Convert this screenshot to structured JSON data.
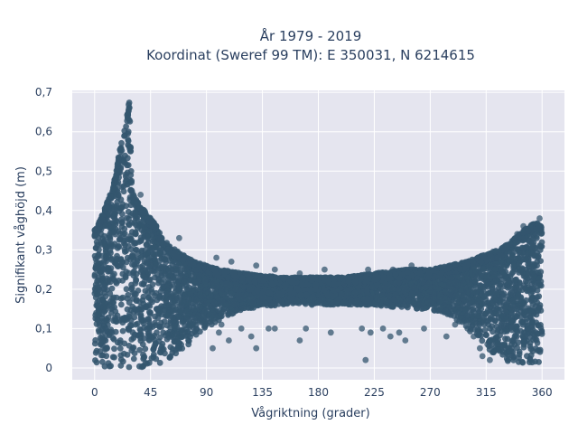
{
  "chart_data": {
    "type": "scatter",
    "title_lines": [
      "År 1979 - 2019",
      "Koordinat (Sweref 99 TM): E 350031, N 6214615"
    ],
    "xlabel": "Vågriktning (grader)",
    "ylabel": "Signifikant våghöjd (m)",
    "xlim": [
      -18,
      378
    ],
    "ylim": [
      -0.03,
      0.705
    ],
    "xticks": [
      0,
      45,
      90,
      135,
      180,
      225,
      270,
      315,
      360
    ],
    "xtick_labels": [
      "0",
      "45",
      "90",
      "135",
      "180",
      "225",
      "270",
      "315",
      "360"
    ],
    "yticks": [
      0,
      0.1,
      0.2,
      0.3,
      0.4,
      0.5,
      0.6,
      0.7
    ],
    "ytick_labels": [
      "0",
      "0,1",
      "0,2",
      "0,3",
      "0,4",
      "0,5",
      "0,6",
      "0,7"
    ],
    "grid": true,
    "legend": "none",
    "marker_color": "#34566f",
    "background_color": "#e5e5ef",
    "density_envelope": {
      "direction_deg": [
        0,
        5,
        10,
        15,
        20,
        25,
        28,
        30,
        35,
        40,
        45,
        50,
        55,
        60,
        65,
        70,
        75,
        80,
        90,
        100,
        120,
        150,
        180,
        200,
        225,
        250,
        270,
        285,
        300,
        315,
        325,
        335,
        345,
        355,
        360
      ],
      "max_height_m": [
        0.35,
        0.38,
        0.42,
        0.46,
        0.55,
        0.62,
        0.68,
        0.45,
        0.42,
        0.4,
        0.38,
        0.36,
        0.33,
        0.31,
        0.3,
        0.29,
        0.28,
        0.27,
        0.26,
        0.25,
        0.24,
        0.23,
        0.23,
        0.23,
        0.24,
        0.25,
        0.25,
        0.26,
        0.27,
        0.29,
        0.3,
        0.32,
        0.35,
        0.37,
        0.36
      ],
      "min_height_m": [
        0.0,
        0.0,
        0.0,
        0.0,
        0.0,
        0.0,
        0.0,
        0.0,
        0.0,
        0.0,
        0.0,
        0.0,
        0.0,
        0.02,
        0.03,
        0.04,
        0.05,
        0.08,
        0.1,
        0.12,
        0.15,
        0.16,
        0.16,
        0.16,
        0.16,
        0.15,
        0.15,
        0.13,
        0.1,
        0.05,
        0.02,
        0.01,
        0.01,
        0.01,
        0.01
      ]
    },
    "outliers": [
      {
        "x": 30,
        "y": 0.45
      },
      {
        "x": 37,
        "y": 0.44
      },
      {
        "x": 53,
        "y": 0.33
      },
      {
        "x": 68,
        "y": 0.33
      },
      {
        "x": 98,
        "y": 0.28
      },
      {
        "x": 110,
        "y": 0.27
      },
      {
        "x": 130,
        "y": 0.26
      },
      {
        "x": 145,
        "y": 0.25
      },
      {
        "x": 165,
        "y": 0.24
      },
      {
        "x": 185,
        "y": 0.25
      },
      {
        "x": 220,
        "y": 0.25
      },
      {
        "x": 240,
        "y": 0.25
      },
      {
        "x": 255,
        "y": 0.26
      },
      {
        "x": 300,
        "y": 0.27
      },
      {
        "x": 340,
        "y": 0.34
      },
      {
        "x": 345,
        "y": 0.36
      },
      {
        "x": 358,
        "y": 0.38
      },
      {
        "x": 95,
        "y": 0.05
      },
      {
        "x": 100,
        "y": 0.09
      },
      {
        "x": 102,
        "y": 0.11
      },
      {
        "x": 108,
        "y": 0.07
      },
      {
        "x": 118,
        "y": 0.1
      },
      {
        "x": 126,
        "y": 0.08
      },
      {
        "x": 130,
        "y": 0.05
      },
      {
        "x": 140,
        "y": 0.1
      },
      {
        "x": 145,
        "y": 0.1
      },
      {
        "x": 165,
        "y": 0.07
      },
      {
        "x": 170,
        "y": 0.1
      },
      {
        "x": 190,
        "y": 0.09
      },
      {
        "x": 215,
        "y": 0.1
      },
      {
        "x": 222,
        "y": 0.09
      },
      {
        "x": 218,
        "y": 0.02
      },
      {
        "x": 232,
        "y": 0.1
      },
      {
        "x": 238,
        "y": 0.08
      },
      {
        "x": 245,
        "y": 0.09
      },
      {
        "x": 250,
        "y": 0.07
      },
      {
        "x": 265,
        "y": 0.1
      },
      {
        "x": 283,
        "y": 0.08
      },
      {
        "x": 290,
        "y": 0.11
      },
      {
        "x": 300,
        "y": 0.1
      },
      {
        "x": 305,
        "y": 0.08
      },
      {
        "x": 310,
        "y": 0.05
      },
      {
        "x": 312,
        "y": 0.03
      },
      {
        "x": 316,
        "y": 0.06
      },
      {
        "x": 318,
        "y": 0.02
      }
    ]
  }
}
